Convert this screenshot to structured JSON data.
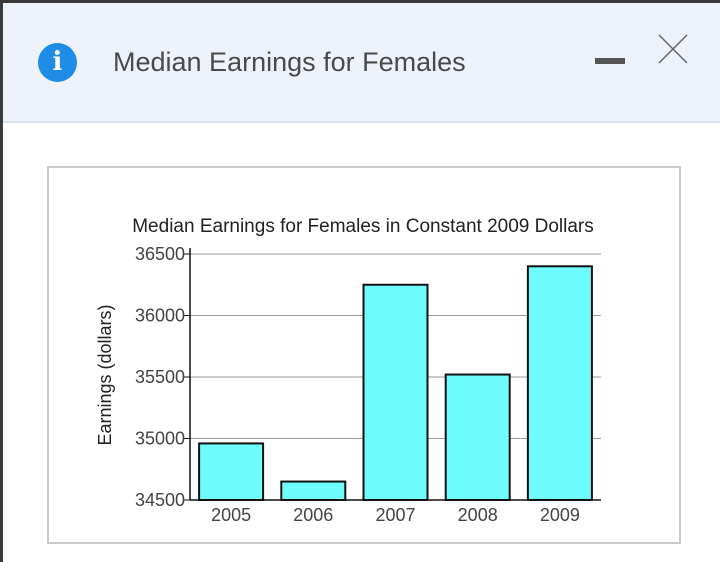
{
  "window": {
    "title": "Median Earnings for Females",
    "info_icon": "info-icon",
    "minimize_icon": "minimize-icon",
    "close_icon": "close-icon"
  },
  "colors": {
    "titlebar_bg": "#eef3fb",
    "info_icon": "#1f8ce6",
    "bar_fill": "#6ffcff",
    "bar_stroke": "#111111",
    "grid": "#999999"
  },
  "chart_data": {
    "type": "bar",
    "title": "Median Earnings for Females in Constant 2009 Dollars",
    "xlabel": "",
    "ylabel": "Earnings (dollars)",
    "categories": [
      "2005",
      "2006",
      "2007",
      "2008",
      "2009"
    ],
    "values": [
      34960,
      34650,
      36250,
      35520,
      36400
    ],
    "ylim": [
      34500,
      36500
    ],
    "yticks": [
      34500,
      35000,
      35500,
      36000,
      36500
    ],
    "grid": true,
    "legend": "none"
  }
}
